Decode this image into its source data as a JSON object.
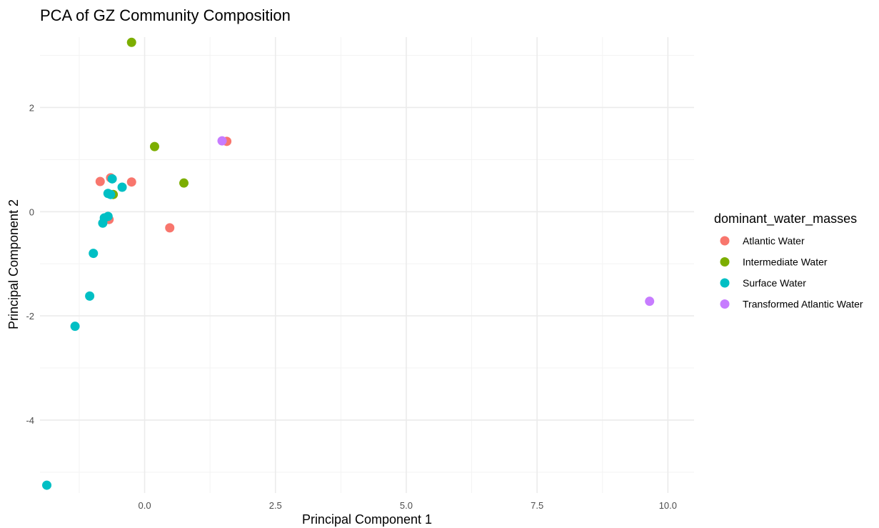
{
  "chart_data": {
    "type": "scatter",
    "title": "PCA of GZ Community Composition",
    "xlabel": "Principal Component 1",
    "ylabel": "Principal Component 2",
    "xlim": [
      -2.0,
      10.5
    ],
    "ylim": [
      -5.4,
      3.35
    ],
    "x_ticks": [
      0.0,
      2.5,
      5.0,
      7.5,
      10.0
    ],
    "x_tick_labels": [
      "0.0",
      "2.5",
      "5.0",
      "7.5",
      "10.0"
    ],
    "y_ticks": [
      -4,
      -2,
      0,
      2
    ],
    "y_tick_labels": [
      "-4",
      "-2",
      "0",
      "2"
    ],
    "grid": true,
    "legend": {
      "title": "dominant_water_masses",
      "position": "right"
    },
    "series": [
      {
        "name": "Atlantic Water",
        "color": "#F8766D",
        "points": [
          {
            "x": -0.85,
            "y": 0.58
          },
          {
            "x": -0.65,
            "y": 0.65
          },
          {
            "x": -0.25,
            "y": 0.57
          },
          {
            "x": -0.68,
            "y": -0.15
          },
          {
            "x": 0.48,
            "y": -0.31
          },
          {
            "x": 1.57,
            "y": 1.35
          }
        ]
      },
      {
        "name": "Intermediate Water",
        "color": "#7CAE00",
        "points": [
          {
            "x": -0.25,
            "y": 3.25
          },
          {
            "x": 0.19,
            "y": 1.25
          },
          {
            "x": 0.75,
            "y": 0.55
          },
          {
            "x": -0.6,
            "y": 0.33
          }
        ]
      },
      {
        "name": "Surface Water",
        "color": "#00BFC4",
        "points": [
          {
            "x": -0.62,
            "y": 0.63
          },
          {
            "x": -0.43,
            "y": 0.47
          },
          {
            "x": -0.7,
            "y": 0.35
          },
          {
            "x": -0.65,
            "y": 0.33
          },
          {
            "x": -0.77,
            "y": -0.12
          },
          {
            "x": -0.7,
            "y": -0.09
          },
          {
            "x": -0.8,
            "y": -0.22
          },
          {
            "x": -0.98,
            "y": -0.8
          },
          {
            "x": -1.05,
            "y": -1.62
          },
          {
            "x": -1.33,
            "y": -2.2
          },
          {
            "x": -1.87,
            "y": -5.25
          }
        ]
      },
      {
        "name": "Transformed Atlantic Water",
        "color": "#C77CFF",
        "points": [
          {
            "x": 1.48,
            "y": 1.36
          },
          {
            "x": 9.65,
            "y": -1.72
          }
        ]
      }
    ]
  }
}
